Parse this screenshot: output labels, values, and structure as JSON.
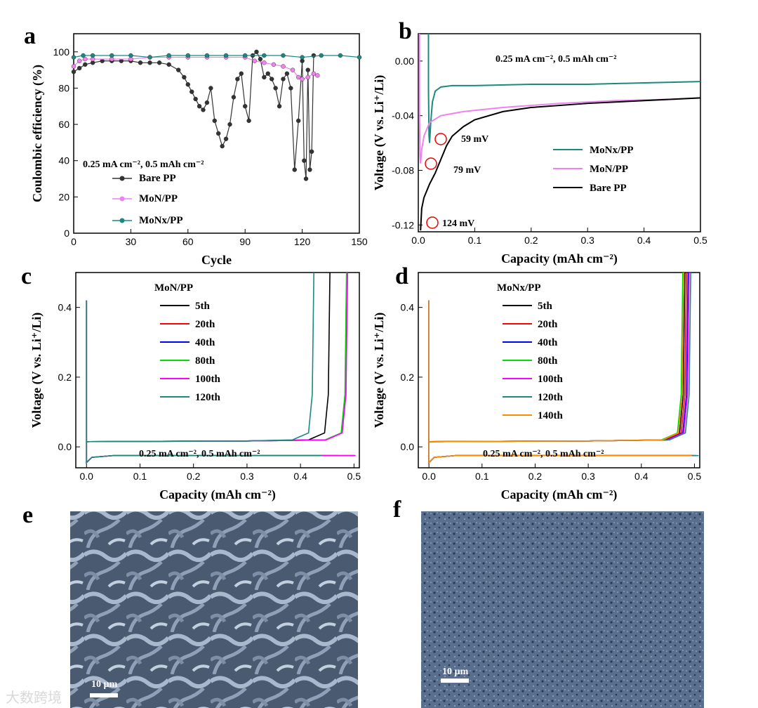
{
  "panel_labels": [
    "a",
    "b",
    "c",
    "d",
    "e",
    "f"
  ],
  "watermark": "大数跨境",
  "sem": {
    "e": {
      "scalebar": "10 µm"
    },
    "f": {
      "scalebar": "10 µm"
    }
  },
  "colors": {
    "bare": "#333333",
    "mon": "#ee82ee",
    "monx": "#1a8a80"
  },
  "chart_data": [
    {
      "id": "a",
      "type": "line",
      "xlabel": "Cycle",
      "ylabel": "Coulombic efficiency (%)",
      "xlim": [
        0,
        150
      ],
      "ylim": [
        0,
        110
      ],
      "xticks": [
        0,
        30,
        60,
        90,
        120,
        150
      ],
      "yticks": [
        0,
        20,
        40,
        60,
        80,
        100
      ],
      "annotation": "0.25 mA cm⁻², 0.5 mAh cm⁻²",
      "series": [
        {
          "name": "Bare PP",
          "color": "#333333",
          "marker": "circle",
          "x": [
            0,
            3,
            6,
            10,
            15,
            20,
            25,
            30,
            35,
            40,
            45,
            50,
            55,
            58,
            60,
            62,
            64,
            66,
            68,
            70,
            72,
            74,
            76,
            78,
            80,
            82,
            84,
            86,
            88,
            90,
            92,
            94,
            96,
            98,
            100,
            102,
            104,
            106,
            108,
            110,
            112,
            114,
            116,
            118,
            120,
            121,
            122,
            123,
            124,
            125,
            126
          ],
          "y": [
            89,
            91,
            93,
            94,
            95,
            95,
            95,
            95,
            94,
            94,
            94,
            93,
            90,
            86,
            82,
            78,
            74,
            70,
            68,
            72,
            80,
            62,
            55,
            48,
            52,
            60,
            75,
            85,
            88,
            70,
            62,
            98,
            100,
            96,
            86,
            88,
            85,
            80,
            70,
            85,
            88,
            80,
            35,
            62,
            95,
            40,
            30,
            90,
            35,
            45,
            98
          ]
        },
        {
          "name": "MoN/PP",
          "color": "#ee82ee",
          "marker": "circle",
          "x": [
            0,
            3,
            6,
            10,
            20,
            30,
            40,
            50,
            60,
            70,
            80,
            90,
            95,
            100,
            105,
            110,
            115,
            118,
            120,
            123,
            126,
            128
          ],
          "y": [
            92,
            95,
            96,
            96,
            96,
            96,
            97,
            97,
            97,
            97,
            97,
            97,
            95,
            94,
            93,
            92,
            90,
            86,
            85,
            86,
            88,
            87
          ]
        },
        {
          "name": "MoNx/PP",
          "color": "#1a8a80",
          "marker": "circle",
          "x": [
            0,
            5,
            10,
            20,
            30,
            40,
            50,
            60,
            70,
            80,
            90,
            100,
            110,
            120,
            130,
            140,
            150
          ],
          "y": [
            97,
            98,
            98,
            98,
            98,
            97,
            98,
            98,
            98,
            98,
            98,
            98,
            98,
            97,
            98,
            98,
            97
          ]
        }
      ]
    },
    {
      "id": "b",
      "type": "line",
      "xlabel": "Capacity (mAh cm⁻²)",
      "ylabel": "Voltage (V vs. Li⁺/Li)",
      "xlim": [
        0,
        0.5
      ],
      "ylim": [
        -0.125,
        0.02
      ],
      "xticks": [
        0.0,
        0.1,
        0.2,
        0.3,
        0.4,
        0.5
      ],
      "yticks": [
        -0.12,
        -0.08,
        -0.04,
        0.0
      ],
      "annotation": "0.25 mA cm⁻², 0.5 mAh cm⁻²",
      "callouts": [
        {
          "text": "59 mV",
          "x": 0.018,
          "y": -0.059
        },
        {
          "text": "79 mV",
          "x": 0.003,
          "y": -0.078
        },
        {
          "text": "124 mV",
          "x": 0.004,
          "y": -0.122
        }
      ],
      "series": [
        {
          "name": "MoNx/PP",
          "color": "#1a8a80",
          "x": [
            0.018,
            0.018,
            0.019,
            0.02,
            0.022,
            0.025,
            0.03,
            0.04,
            0.06,
            0.1,
            0.2,
            0.3,
            0.4,
            0.5
          ],
          "y": [
            0.02,
            -0.02,
            -0.055,
            -0.06,
            -0.045,
            -0.03,
            -0.022,
            -0.019,
            -0.018,
            -0.018,
            -0.017,
            -0.017,
            -0.016,
            -0.015
          ]
        },
        {
          "name": "MoN/PP",
          "color": "#ee82ee",
          "x": [
            0.002,
            0.002,
            0.003,
            0.004,
            0.006,
            0.01,
            0.02,
            0.04,
            0.08,
            0.15,
            0.25,
            0.35,
            0.45,
            0.5
          ],
          "y": [
            0.02,
            -0.04,
            -0.07,
            -0.075,
            -0.065,
            -0.055,
            -0.045,
            -0.04,
            -0.037,
            -0.034,
            -0.031,
            -0.029,
            -0.028,
            -0.027
          ]
        },
        {
          "name": "Bare PP",
          "color": "#000000",
          "x": [
            0.004,
            0.006,
            0.01,
            0.015,
            0.02,
            0.03,
            0.04,
            0.05,
            0.06,
            0.08,
            0.1,
            0.15,
            0.2,
            0.3,
            0.4,
            0.5
          ],
          "y": [
            -0.124,
            -0.108,
            -0.1,
            -0.095,
            -0.09,
            -0.082,
            -0.072,
            -0.062,
            -0.055,
            -0.048,
            -0.043,
            -0.037,
            -0.034,
            -0.031,
            -0.029,
            -0.027
          ]
        }
      ]
    },
    {
      "id": "c",
      "type": "line",
      "xlabel": "Capacity (mAh cm⁻²)",
      "ylabel": "Voltage (V vs. Li⁺/Li)",
      "xlim": [
        -0.02,
        0.51
      ],
      "ylim": [
        -0.06,
        0.5
      ],
      "xticks": [
        0.0,
        0.1,
        0.2,
        0.3,
        0.4,
        0.5
      ],
      "yticks": [
        0.0,
        0.2,
        0.4
      ],
      "annotation": "0.25 mA cm⁻², 0.5 mAh cm⁻²",
      "legend_title": "MoN/PP",
      "series": [
        {
          "name": "5th",
          "color": "#000000",
          "end": 0.455
        },
        {
          "name": "20th",
          "color": "#ff0000",
          "end": 0.487
        },
        {
          "name": "40th",
          "color": "#0000ff",
          "end": 0.487
        },
        {
          "name": "80th",
          "color": "#00dd00",
          "end": 0.486
        },
        {
          "name": "100th",
          "color": "#ff00ff",
          "end": 0.488
        },
        {
          "name": "120th",
          "color": "#1a8a80",
          "end": 0.425
        }
      ]
    },
    {
      "id": "d",
      "type": "line",
      "xlabel": "Capacity (mAh cm⁻²)",
      "ylabel": "Voltage (V vs. Li⁺/Li)",
      "xlim": [
        -0.02,
        0.51
      ],
      "ylim": [
        -0.06,
        0.5
      ],
      "xticks": [
        0.0,
        0.1,
        0.2,
        0.3,
        0.4,
        0.5
      ],
      "yticks": [
        0.0,
        0.2,
        0.4
      ],
      "annotation": "0.25 mA cm⁻², 0.5 mAh cm⁻²",
      "legend_title": "MoNx/PP",
      "series": [
        {
          "name": "5th",
          "color": "#000000",
          "end": 0.482
        },
        {
          "name": "20th",
          "color": "#ff0000",
          "end": 0.485
        },
        {
          "name": "40th",
          "color": "#0000ff",
          "end": 0.488
        },
        {
          "name": "80th",
          "color": "#00dd00",
          "end": 0.478
        },
        {
          "name": "100th",
          "color": "#ff00ff",
          "end": 0.49
        },
        {
          "name": "120th",
          "color": "#1a8a80",
          "end": 0.493
        },
        {
          "name": "140th",
          "color": "#ff8c00",
          "end": 0.48
        }
      ]
    }
  ]
}
